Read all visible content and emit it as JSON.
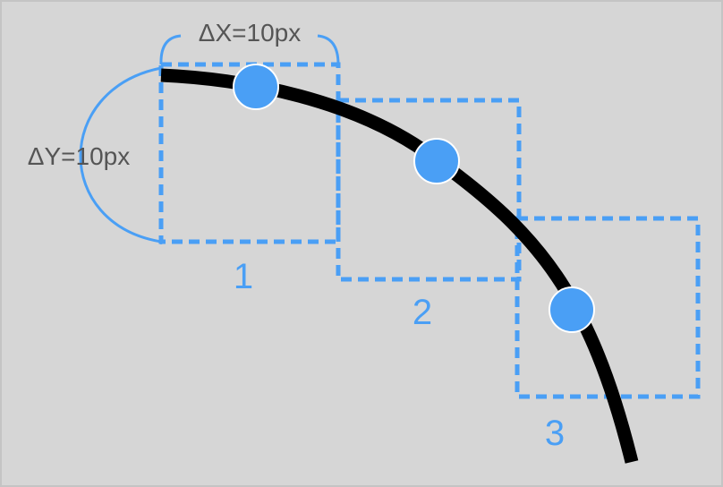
{
  "colors": {
    "background": "#d6d6d6",
    "border": "#c4c4c4",
    "accent": "#4a9ff5",
    "curve": "#000000",
    "dimension_text": "#555555",
    "dot_outline": "#ffffff"
  },
  "dimensions": {
    "dx_label": "ΔX=10px",
    "dy_label": "ΔY=10px"
  },
  "boxes": [
    {
      "label": "1"
    },
    {
      "label": "2"
    },
    {
      "label": "3"
    }
  ],
  "icons": [
    "dashed-grid-box",
    "sample-dot",
    "brace"
  ]
}
